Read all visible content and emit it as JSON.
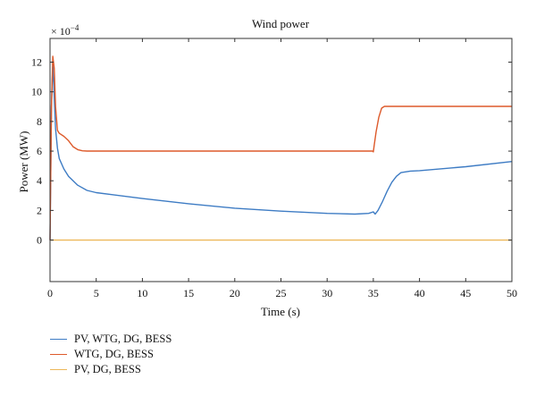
{
  "chart_data": {
    "type": "line",
    "title": "Wind power",
    "xlabel": "Time (s)",
    "ylabel": "Power (MW)",
    "y_multiplier": "× 10",
    "y_exponent": "−4",
    "xlim": [
      0,
      50
    ],
    "ylim": [
      -2.8,
      13.6
    ],
    "xticks": [
      0,
      5,
      10,
      15,
      20,
      25,
      30,
      35,
      40,
      45,
      50
    ],
    "yticks": [
      0,
      2,
      4,
      6,
      8,
      10,
      12
    ],
    "grid": false,
    "legend_position": "below-left",
    "series": [
      {
        "name": "PV, WTG, DG, BESS",
        "color": "#3e7cc4",
        "points": [
          [
            0,
            0
          ],
          [
            0.15,
            9
          ],
          [
            0.3,
            11.9
          ],
          [
            0.4,
            10.5
          ],
          [
            0.6,
            7.5
          ],
          [
            0.8,
            6.2
          ],
          [
            1,
            5.5
          ],
          [
            1.5,
            4.8
          ],
          [
            2,
            4.3
          ],
          [
            3,
            3.7
          ],
          [
            4,
            3.35
          ],
          [
            5,
            3.2
          ],
          [
            10,
            2.8
          ],
          [
            15,
            2.45
          ],
          [
            20,
            2.15
          ],
          [
            25,
            1.95
          ],
          [
            30,
            1.8
          ],
          [
            33,
            1.75
          ],
          [
            34.5,
            1.8
          ],
          [
            35,
            1.9
          ],
          [
            35.2,
            1.75
          ],
          [
            35.5,
            2
          ],
          [
            36,
            2.6
          ],
          [
            36.5,
            3.3
          ],
          [
            37,
            3.9
          ],
          [
            37.5,
            4.3
          ],
          [
            38,
            4.55
          ],
          [
            39,
            4.65
          ],
          [
            40,
            4.68
          ],
          [
            45,
            4.95
          ],
          [
            50,
            5.3
          ]
        ]
      },
      {
        "name": "WTG, DG, BESS",
        "color": "#dd5a2b",
        "points": [
          [
            0,
            0
          ],
          [
            0.15,
            9
          ],
          [
            0.3,
            12.4
          ],
          [
            0.45,
            11.6
          ],
          [
            0.6,
            9
          ],
          [
            0.8,
            7.4
          ],
          [
            1,
            7.2
          ],
          [
            1.5,
            7
          ],
          [
            2,
            6.7
          ],
          [
            2.5,
            6.3
          ],
          [
            3,
            6.1
          ],
          [
            3.5,
            6.02
          ],
          [
            4,
            6
          ],
          [
            10,
            6
          ],
          [
            20,
            6
          ],
          [
            30,
            6
          ],
          [
            34.9,
            6
          ],
          [
            35,
            5.95
          ],
          [
            35.1,
            6.4
          ],
          [
            35.3,
            7.3
          ],
          [
            35.6,
            8.3
          ],
          [
            35.9,
            8.9
          ],
          [
            36.2,
            9.02
          ],
          [
            37,
            9.02
          ],
          [
            50,
            9.02
          ]
        ]
      },
      {
        "name": "PV, DG, BESS",
        "color": "#edb85a",
        "points": [
          [
            0,
            0
          ],
          [
            50,
            0
          ]
        ]
      }
    ]
  }
}
